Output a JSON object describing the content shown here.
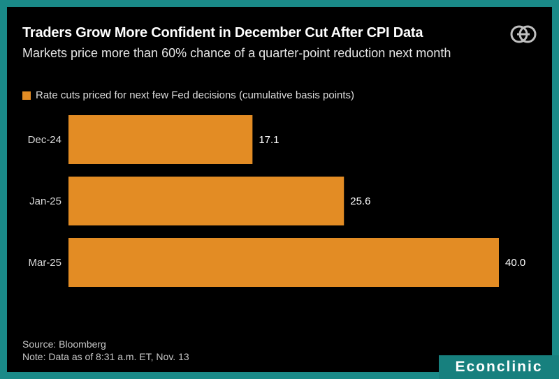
{
  "header": {
    "title": "Traders Grow More Confident in December Cut After CPI Data",
    "subtitle": "Markets price more than 60% chance of a quarter-point reduction next month"
  },
  "colors": {
    "bar": "#e38c24",
    "background": "#000000",
    "border": "#1a8a88",
    "text": "#ffffff"
  },
  "chart_data": {
    "type": "bar",
    "orientation": "horizontal",
    "categories": [
      "Dec-24",
      "Jan-25",
      "Mar-25"
    ],
    "series": [
      {
        "name": "Rate cuts priced for next few Fed decisions (cumulative basis points)",
        "values": [
          17.1,
          25.6,
          40.0
        ]
      }
    ],
    "value_labels": [
      "17.1",
      "25.6",
      "40.0"
    ],
    "xlim": [
      0,
      40
    ],
    "grid": false,
    "legend_position": "top-left"
  },
  "footer": {
    "source": "Source: Bloomberg",
    "note": "Note: Data as of 8:31 a.m. ET, Nov. 13"
  },
  "brand": {
    "label": "Econclinic",
    "logo_icon": "bloomberg-logo-icon"
  }
}
